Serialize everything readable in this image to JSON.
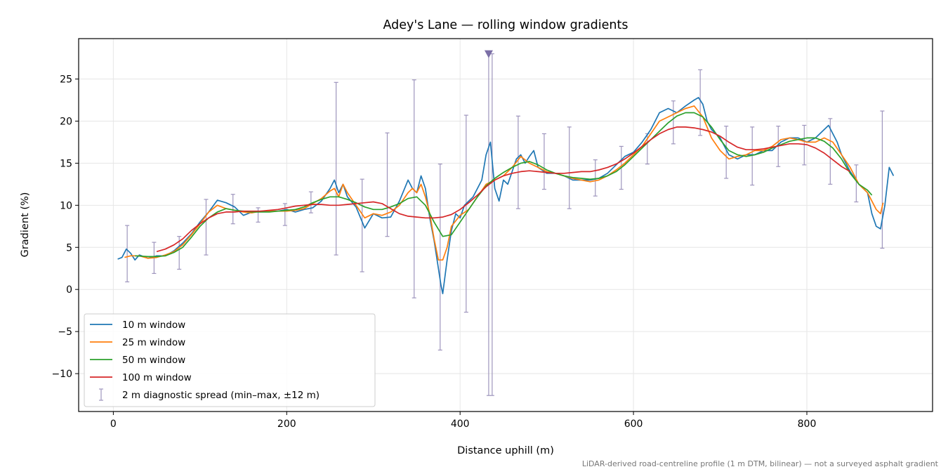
{
  "chart_data": {
    "type": "line",
    "title": "Adey's Lane — rolling window gradients",
    "xlabel": "Distance uphill (m)",
    "ylabel": "Gradient (%)",
    "footnote": "LiDAR-derived road-centreline profile (1 m DTM, bilinear) — not a surveyed asphalt gradient",
    "xlim": [
      -40,
      945
    ],
    "ylim": [
      -14.5,
      29.8
    ],
    "xticks": [
      0,
      200,
      400,
      600,
      800
    ],
    "xtick_labels": [
      "0",
      "200",
      "400",
      "600",
      "800"
    ],
    "yticks": [
      -10,
      -5,
      0,
      5,
      10,
      15,
      20,
      25
    ],
    "ytick_labels": [
      "−10",
      "−5",
      "0",
      "5",
      "10",
      "15",
      "20",
      "25"
    ],
    "grid": true,
    "legend_position": "lower-left",
    "series": [
      {
        "name": "10 m window",
        "color": "#1f77b4",
        "x": [
          5,
          10,
          15,
          20,
          25,
          30,
          40,
          50,
          60,
          70,
          80,
          90,
          100,
          110,
          120,
          130,
          140,
          150,
          160,
          170,
          180,
          190,
          200,
          210,
          220,
          230,
          240,
          250,
          255,
          260,
          265,
          270,
          280,
          290,
          300,
          310,
          320,
          330,
          340,
          345,
          350,
          355,
          360,
          365,
          370,
          375,
          378,
          380,
          385,
          390,
          395,
          400,
          405,
          410,
          415,
          420,
          425,
          430,
          435,
          440,
          445,
          450,
          455,
          460,
          465,
          470,
          475,
          480,
          485,
          490,
          500,
          510,
          520,
          530,
          540,
          550,
          560,
          570,
          580,
          590,
          600,
          610,
          620,
          630,
          640,
          650,
          660,
          670,
          675,
          680,
          685,
          690,
          700,
          710,
          720,
          730,
          740,
          750,
          760,
          770,
          780,
          790,
          800,
          810,
          820,
          825,
          830,
          835,
          840,
          850,
          860,
          870,
          875,
          880,
          885,
          890,
          895,
          900
        ],
        "y": [
          3.6,
          3.8,
          4.8,
          4.3,
          3.5,
          4.1,
          3.7,
          4.0,
          4.0,
          4.6,
          5.5,
          6.6,
          8.0,
          9.2,
          10.6,
          10.3,
          9.8,
          8.8,
          9.2,
          9.3,
          9.3,
          9.3,
          9.5,
          9.2,
          9.5,
          9.7,
          10.5,
          12.0,
          13.0,
          11.5,
          12.5,
          11.0,
          9.8,
          7.3,
          9.0,
          8.5,
          8.6,
          10.5,
          13.0,
          12.0,
          11.5,
          13.5,
          12.0,
          8.5,
          5.8,
          2.5,
          0.5,
          -0.5,
          3.5,
          7.0,
          9.0,
          8.5,
          10.0,
          10.5,
          11.0,
          12.0,
          13.0,
          16.0,
          17.5,
          12.0,
          10.5,
          13.0,
          12.5,
          14.0,
          15.5,
          16.0,
          15.0,
          15.8,
          16.5,
          14.5,
          13.8,
          13.8,
          13.5,
          13.0,
          13.0,
          13.0,
          13.2,
          13.8,
          14.8,
          15.8,
          16.3,
          17.5,
          19.0,
          21.0,
          21.5,
          21.0,
          21.8,
          22.5,
          22.8,
          22.0,
          20.0,
          19.0,
          18.0,
          16.0,
          15.5,
          16.0,
          16.0,
          16.5,
          16.5,
          17.5,
          18.0,
          18.0,
          17.5,
          18.0,
          19.0,
          19.5,
          18.5,
          17.5,
          16.0,
          14.0,
          12.5,
          11.5,
          9.0,
          7.5,
          7.2,
          10.0,
          14.5,
          13.5
        ]
      },
      {
        "name": "25 m window",
        "color": "#ff7f0e",
        "x": [
          13,
          20,
          30,
          40,
          50,
          60,
          70,
          80,
          90,
          100,
          110,
          120,
          130,
          140,
          150,
          160,
          170,
          180,
          190,
          200,
          210,
          220,
          230,
          240,
          250,
          255,
          260,
          265,
          270,
          280,
          290,
          300,
          310,
          320,
          330,
          340,
          345,
          350,
          355,
          360,
          365,
          370,
          375,
          380,
          385,
          390,
          400,
          410,
          420,
          430,
          440,
          450,
          460,
          470,
          480,
          490,
          500,
          510,
          520,
          530,
          540,
          550,
          560,
          570,
          580,
          590,
          600,
          610,
          620,
          630,
          640,
          650,
          660,
          670,
          680,
          690,
          700,
          710,
          720,
          730,
          740,
          750,
          760,
          770,
          780,
          790,
          800,
          810,
          820,
          830,
          840,
          850,
          860,
          870,
          875,
          880,
          885,
          888
        ],
        "y": [
          3.8,
          4.0,
          4.0,
          3.7,
          3.8,
          4.1,
          4.5,
          5.3,
          6.5,
          7.8,
          9.2,
          10.0,
          9.6,
          9.4,
          9.2,
          9.1,
          9.3,
          9.3,
          9.3,
          9.3,
          9.4,
          9.6,
          10.2,
          10.8,
          11.7,
          12.0,
          11.0,
          12.5,
          11.5,
          10.0,
          8.5,
          9.0,
          8.8,
          9.2,
          10.0,
          11.5,
          12.0,
          11.5,
          12.5,
          11.0,
          9.0,
          6.0,
          3.5,
          3.5,
          5.0,
          7.5,
          8.8,
          9.5,
          11.0,
          12.5,
          13.0,
          13.5,
          14.5,
          15.8,
          15.0,
          14.5,
          14.0,
          13.8,
          13.5,
          13.2,
          13.0,
          12.8,
          13.0,
          13.5,
          14.2,
          15.0,
          16.0,
          17.0,
          18.5,
          20.0,
          20.5,
          21.0,
          21.5,
          21.8,
          20.5,
          18.0,
          16.5,
          15.5,
          15.8,
          16.0,
          16.5,
          16.5,
          17.0,
          17.8,
          18.0,
          17.8,
          17.5,
          17.5,
          18.0,
          17.5,
          16.0,
          14.5,
          12.5,
          11.5,
          10.5,
          9.5,
          9.0,
          10.3
        ]
      },
      {
        "name": "50 m window",
        "color": "#2ca02c",
        "x": [
          25,
          40,
          50,
          60,
          70,
          80,
          90,
          100,
          110,
          120,
          130,
          140,
          150,
          160,
          170,
          180,
          190,
          200,
          210,
          220,
          230,
          240,
          250,
          260,
          270,
          280,
          290,
          300,
          310,
          320,
          330,
          340,
          350,
          360,
          370,
          380,
          390,
          400,
          410,
          420,
          430,
          440,
          450,
          460,
          470,
          480,
          490,
          500,
          510,
          520,
          530,
          540,
          550,
          560,
          570,
          580,
          590,
          600,
          610,
          620,
          630,
          640,
          650,
          660,
          670,
          680,
          690,
          700,
          710,
          720,
          730,
          740,
          750,
          760,
          770,
          780,
          790,
          800,
          810,
          820,
          830,
          840,
          850,
          860,
          870,
          875
        ],
        "y": [
          4.0,
          3.9,
          3.9,
          4.0,
          4.4,
          5.0,
          6.2,
          7.5,
          8.5,
          9.2,
          9.6,
          9.4,
          9.3,
          9.2,
          9.2,
          9.2,
          9.3,
          9.4,
          9.5,
          9.8,
          10.3,
          10.7,
          11.0,
          11.0,
          10.7,
          10.3,
          9.8,
          9.5,
          9.5,
          9.8,
          10.2,
          10.8,
          11.0,
          10.0,
          8.0,
          6.3,
          6.5,
          8.0,
          9.5,
          11.0,
          12.3,
          13.2,
          13.9,
          14.5,
          15.0,
          15.2,
          14.8,
          14.2,
          13.8,
          13.5,
          13.3,
          13.2,
          13.1,
          13.2,
          13.5,
          14.0,
          14.8,
          15.8,
          16.8,
          17.8,
          18.8,
          19.8,
          20.6,
          21.0,
          21.0,
          20.5,
          19.3,
          17.8,
          16.5,
          16.0,
          15.8,
          16.0,
          16.3,
          16.8,
          17.2,
          17.6,
          17.8,
          18.0,
          18.0,
          17.6,
          16.8,
          15.5,
          13.8,
          12.5,
          11.8,
          11.2
        ]
      },
      {
        "name": "100 m window",
        "color": "#d62728",
        "x": [
          50,
          60,
          70,
          80,
          90,
          100,
          110,
          120,
          130,
          140,
          150,
          160,
          170,
          180,
          190,
          200,
          210,
          220,
          230,
          240,
          250,
          260,
          270,
          280,
          290,
          300,
          310,
          320,
          330,
          340,
          350,
          360,
          370,
          380,
          390,
          400,
          410,
          420,
          430,
          440,
          450,
          460,
          470,
          480,
          490,
          500,
          510,
          520,
          530,
          540,
          550,
          560,
          570,
          580,
          590,
          600,
          610,
          620,
          630,
          640,
          650,
          660,
          670,
          680,
          690,
          700,
          710,
          720,
          730,
          740,
          750,
          760,
          770,
          780,
          790,
          800,
          810,
          820,
          830,
          840,
          850
        ],
        "y": [
          4.5,
          4.8,
          5.3,
          6.0,
          7.0,
          7.8,
          8.5,
          9.0,
          9.2,
          9.2,
          9.3,
          9.3,
          9.3,
          9.4,
          9.5,
          9.7,
          9.9,
          10.0,
          10.1,
          10.1,
          10.0,
          10.0,
          10.1,
          10.2,
          10.3,
          10.4,
          10.2,
          9.6,
          9.0,
          8.7,
          8.6,
          8.5,
          8.5,
          8.6,
          8.9,
          9.5,
          10.3,
          11.2,
          12.2,
          13.0,
          13.5,
          13.8,
          14.0,
          14.1,
          14.0,
          13.9,
          13.8,
          13.8,
          13.9,
          14.0,
          14.0,
          14.2,
          14.5,
          14.9,
          15.5,
          16.2,
          17.0,
          17.8,
          18.5,
          19.0,
          19.3,
          19.3,
          19.2,
          19.0,
          18.7,
          18.2,
          17.5,
          16.9,
          16.6,
          16.6,
          16.7,
          16.9,
          17.1,
          17.3,
          17.3,
          17.2,
          16.8,
          16.2,
          15.4,
          14.6,
          14.0
        ]
      }
    ],
    "errorbars": {
      "name": "2 m diagnostic spread (min–max, ±12 m)",
      "color": "#9e95bd",
      "x": [
        16,
        47,
        76,
        107,
        138,
        167,
        198,
        228,
        257,
        287,
        316,
        347,
        377,
        407,
        437,
        467,
        497,
        526,
        556,
        586,
        616,
        646,
        677,
        707,
        737,
        767,
        797,
        827,
        857,
        887
      ],
      "low": [
        0.9,
        1.9,
        2.4,
        4.1,
        7.8,
        8.0,
        7.6,
        9.1,
        4.1,
        2.1,
        6.3,
        -1.0,
        -7.2,
        -2.7,
        -12.6,
        9.6,
        11.9,
        9.6,
        11.1,
        11.9,
        14.9,
        17.3,
        18.3,
        13.2,
        12.4,
        14.6,
        14.8,
        12.5,
        10.4,
        4.9
      ],
      "high": [
        7.6,
        5.6,
        6.3,
        10.7,
        11.3,
        9.7,
        10.2,
        11.6,
        24.6,
        13.1,
        18.6,
        24.9,
        14.9,
        20.7,
        28.0,
        20.6,
        18.5,
        19.3,
        15.4,
        17.0,
        18.5,
        22.4,
        26.1,
        19.4,
        19.3,
        19.4,
        19.5,
        20.3,
        14.8,
        21.2
      ]
    },
    "spike_marker": {
      "x": 433,
      "low": -12.6,
      "high": 28.0
    }
  }
}
